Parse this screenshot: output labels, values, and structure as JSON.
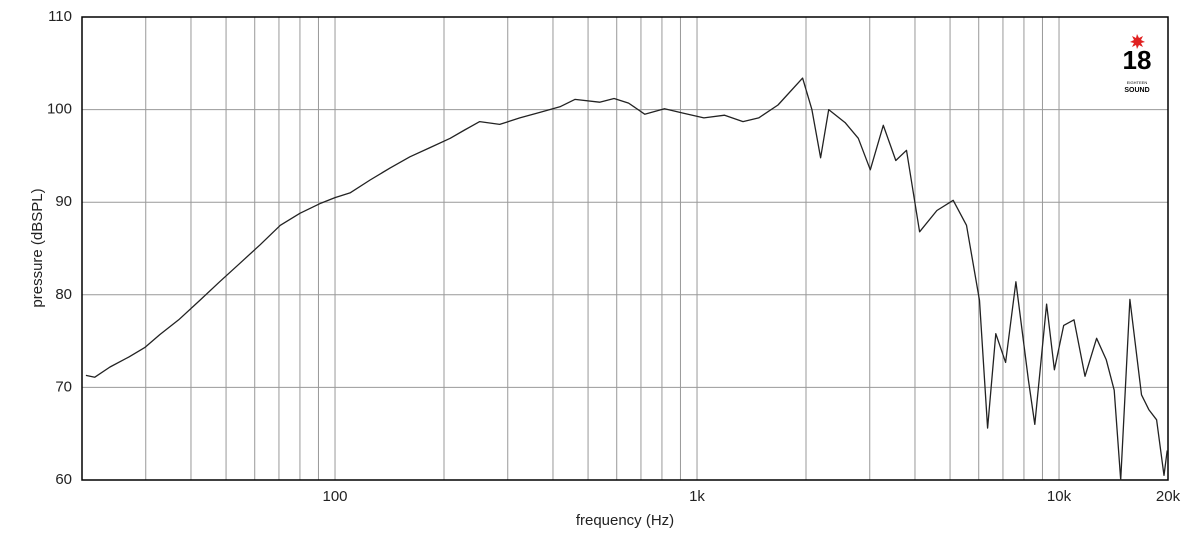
{
  "chart_data": {
    "type": "line",
    "x_label": "frequency (Hz)",
    "y_label": "pressure (dBSPL)",
    "log_x": true,
    "grid": true,
    "xlim": [
      20,
      20000
    ],
    "ylim": [
      60,
      110
    ],
    "xticks": [
      100,
      {
        "value": 1000,
        "label": "1k"
      },
      {
        "value": 10000,
        "label": "10k"
      },
      {
        "value": 20000,
        "label": "20k"
      }
    ],
    "xminor": [
      30,
      40,
      50,
      60,
      70,
      80,
      90,
      200,
      300,
      400,
      500,
      600,
      700,
      800,
      900,
      2000,
      3000,
      4000,
      5000,
      6000,
      7000,
      8000,
      9000
    ],
    "yticks": [
      60,
      70,
      80,
      90,
      100,
      110
    ],
    "x": [
      20.5,
      21.7,
      23.9,
      27,
      29.8,
      32.8,
      37,
      42.3,
      48,
      54.6,
      62.1,
      70.6,
      80,
      91.5,
      100,
      110,
      125,
      142,
      161,
      183,
      208,
      228,
      251,
      285,
      324,
      368,
      418,
      460,
      538,
      590,
      647,
      717,
      813,
      918,
      1045,
      1192,
      1340,
      1480,
      1674,
      1957,
      2077,
      2195,
      2310,
      2565,
      2790,
      3010,
      3270,
      3540,
      3790,
      4120,
      4600,
      5100,
      5550,
      6030,
      6350,
      6690,
      7120,
      7600,
      8230,
      8570,
      9240,
      9710,
      10300,
      11000,
      11800,
      12700,
      13500,
      14200,
      14800,
      15700,
      16900,
      17700,
      18600,
      19500,
      19900
    ],
    "series": [
      {
        "color": "#222222",
        "values": [
          71.3,
          71.1,
          72.2,
          73.3,
          74.3,
          75.7,
          77.3,
          79.4,
          81.4,
          83.4,
          85.4,
          87.5,
          88.8,
          89.9,
          90.5,
          91.0,
          92.4,
          93.7,
          94.9,
          95.9,
          96.9,
          97.8,
          98.7,
          98.4,
          99.1,
          99.7,
          100.3,
          101.1,
          100.8,
          101.2,
          100.7,
          99.5,
          100.1,
          99.6,
          99.1,
          99.4,
          98.7,
          99.1,
          100.5,
          103.4,
          100.0,
          94.8,
          100.0,
          98.6,
          96.9,
          93.5,
          98.3,
          94.5,
          95.6,
          86.8,
          89.1,
          90.2,
          87.5,
          79.4,
          65.6,
          75.8,
          72.7,
          81.4,
          70.8,
          66.0,
          79.0,
          71.9,
          76.7,
          77.3,
          71.2,
          75.3,
          73.0,
          69.7,
          60,
          79.5,
          69.2,
          67.6,
          66.5,
          60.5,
          63.2
        ]
      }
    ]
  },
  "logo": {
    "number": "18",
    "line1": "EIGHTEEN",
    "line2": "SOUND"
  }
}
